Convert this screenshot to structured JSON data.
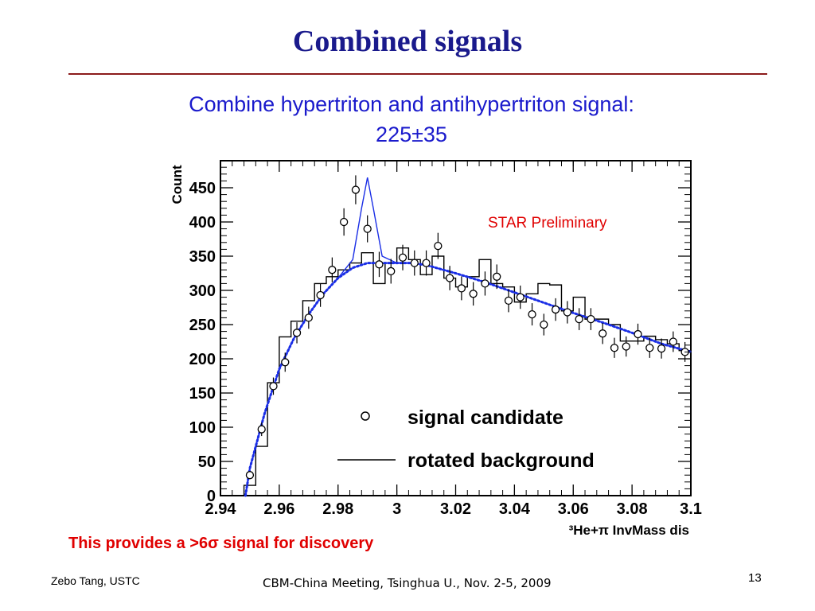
{
  "slide": {
    "title": "Combined signals",
    "subtitle_line1": "Combine hypertriton and antihypertriton signal:",
    "subtitle_line2": "225±35",
    "callout": "This provides a >6σ signal for discovery",
    "footer_left": "Zebo Tang, USTC",
    "footer_center": "CBM-China Meeting, Tsinghua U., Nov. 2-5, 2009",
    "page_number": "13",
    "colors": {
      "title": "#1a1a8c",
      "rule": "#8b1a1a",
      "subtitle": "#1a1acc",
      "callout": "#e00000",
      "fit": "#1a2ee6",
      "annotation": "#e00000"
    }
  },
  "chart_data": {
    "type": "scatter",
    "title": "",
    "xlabel": "³He+π InvMass dis",
    "ylabel": "Count",
    "xlim": [
      2.94,
      3.1
    ],
    "ylim": [
      0,
      480
    ],
    "xticks": [
      2.94,
      2.96,
      2.98,
      3,
      3.02,
      3.04,
      3.06,
      3.08,
      3.1
    ],
    "xtick_labels": [
      "2.94",
      "2.96",
      "2.98",
      "3",
      "3.02",
      "3.04",
      "3.06",
      "3.08",
      "3.1"
    ],
    "yticks": [
      0,
      50,
      100,
      150,
      200,
      250,
      300,
      350,
      400,
      450
    ],
    "ytick_labels": [
      "0",
      "50",
      "100",
      "150",
      "200",
      "250",
      "300",
      "350",
      "400",
      "450"
    ],
    "annotation": "STAR Preliminary",
    "legend": {
      "placement": "bottom-right",
      "entries": [
        {
          "label": "signal candidate",
          "marker": "open-circle"
        },
        {
          "label": "rotated background",
          "marker": "line"
        }
      ]
    },
    "grid": false,
    "bin_width": 0.004,
    "series": [
      {
        "name": "signal candidate",
        "kind": "points",
        "x": [
          2.95,
          2.954,
          2.958,
          2.962,
          2.966,
          2.97,
          2.974,
          2.978,
          2.982,
          2.986,
          2.99,
          2.994,
          2.998,
          3.002,
          3.006,
          3.01,
          3.014,
          3.018,
          3.022,
          3.026,
          3.03,
          3.034,
          3.038,
          3.042,
          3.046,
          3.05,
          3.054,
          3.058,
          3.062,
          3.066,
          3.07,
          3.074,
          3.078,
          3.082,
          3.086,
          3.09,
          3.094,
          3.098
        ],
        "y": [
          30,
          97,
          160,
          195,
          238,
          260,
          293,
          330,
          400,
          447,
          390,
          338,
          328,
          348,
          340,
          340,
          365,
          318,
          303,
          295,
          310,
          320,
          285,
          290,
          265,
          250,
          272,
          268,
          258,
          258,
          237,
          216,
          218,
          236,
          216,
          215,
          225,
          210
        ]
      },
      {
        "name": "rotated background",
        "kind": "histogram",
        "x": [
          2.95,
          2.954,
          2.958,
          2.962,
          2.966,
          2.97,
          2.974,
          2.978,
          2.982,
          2.986,
          2.99,
          2.994,
          2.998,
          3.002,
          3.006,
          3.01,
          3.014,
          3.018,
          3.022,
          3.026,
          3.03,
          3.034,
          3.038,
          3.042,
          3.046,
          3.05,
          3.054,
          3.058,
          3.062,
          3.066,
          3.07,
          3.074,
          3.078,
          3.082,
          3.086,
          3.09,
          3.094,
          3.098
        ],
        "y": [
          15,
          72,
          165,
          232,
          255,
          285,
          310,
          320,
          330,
          340,
          355,
          310,
          340,
          362,
          345,
          323,
          350,
          318,
          305,
          320,
          345,
          310,
          305,
          283,
          295,
          310,
          308,
          270,
          290,
          258,
          258,
          250,
          226,
          226,
          233,
          228,
          222,
          212
        ]
      },
      {
        "name": "fit",
        "kind": "curve",
        "x": [
          2.9485,
          2.95,
          2.955,
          2.96,
          2.965,
          2.97,
          2.975,
          2.98,
          2.985,
          2.988,
          2.99,
          2.992,
          2.995,
          3,
          3.005,
          3.01,
          3.02,
          3.03,
          3.04,
          3.05,
          3.06,
          3.07,
          3.08,
          3.09,
          3.1
        ],
        "y": [
          0,
          40,
          120,
          185,
          230,
          265,
          295,
          318,
          345,
          420,
          465,
          420,
          350,
          340,
          340,
          337,
          325,
          312,
          297,
          282,
          267,
          253,
          238,
          222,
          210
        ]
      },
      {
        "name": "background fit",
        "kind": "dotted-curve",
        "x": [
          2.9485,
          2.95,
          2.955,
          2.96,
          2.965,
          2.97,
          2.975,
          2.98,
          2.985,
          2.99,
          2.995,
          3,
          3.005,
          3.01,
          3.02,
          3.03,
          3.04,
          3.05,
          3.06,
          3.07,
          3.08,
          3.09,
          3.1
        ],
        "y": [
          0,
          40,
          120,
          185,
          230,
          265,
          295,
          318,
          333,
          340,
          340,
          340,
          340,
          337,
          325,
          312,
          297,
          282,
          267,
          253,
          238,
          222,
          210
        ]
      }
    ]
  }
}
